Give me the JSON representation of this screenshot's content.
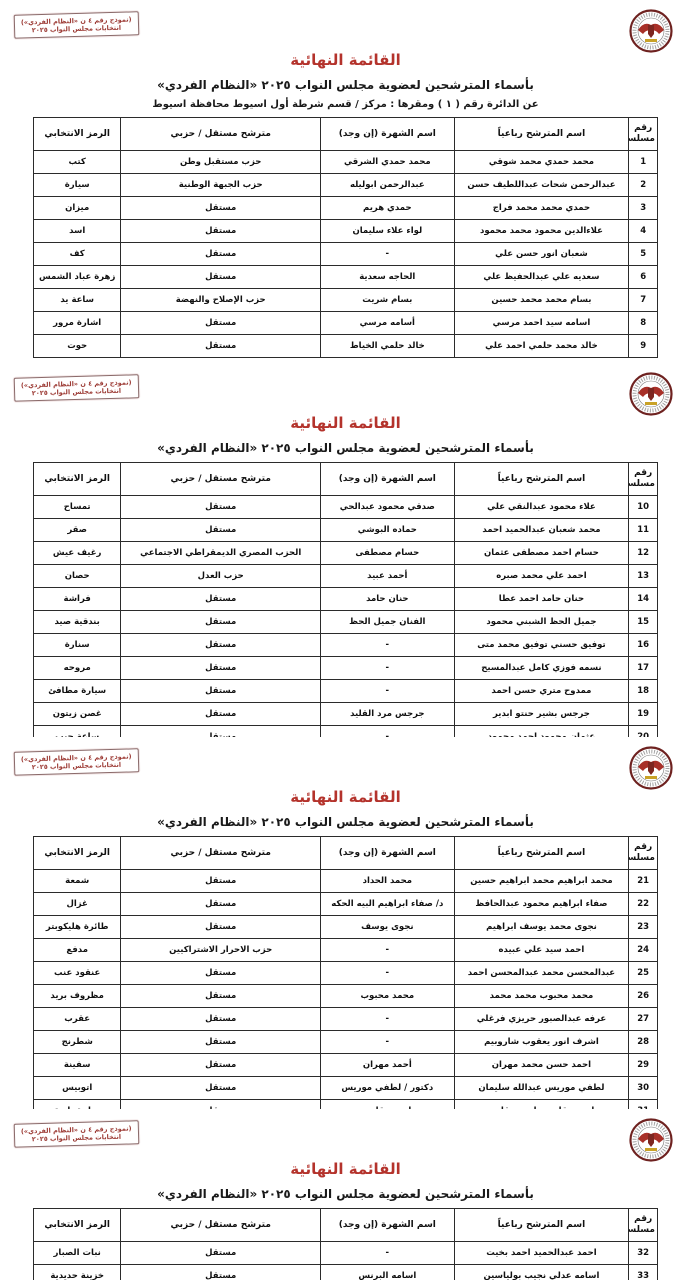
{
  "colors": {
    "title_red": "#b4332c",
    "stamp_red": "#9c3a34",
    "table_border": "#2b2b2b",
    "seal_eagle_red": "#a83028",
    "seal_gold": "#c9a227"
  },
  "icons": {
    "seal": "nea-eagle-seal"
  },
  "stamp": {
    "line1": "(نموذج رقم ٤ ن «النظام الفردي»)",
    "line2": "انتخابات مجلس النواب ٢٠٢٥"
  },
  "header": {
    "title": "القائمة النهائية",
    "subtitle": "بأسماء المترشحين لعضوية مجلس النواب ٢٠٢٥ «النظام الفردي»",
    "district_line": "عن الدائرة رقم ( ١ )   ومقرها : مركز / قسم شرطة أول اسيوط   محافظة اسيوط"
  },
  "table_headers": {
    "serial": "رقم مسلسل",
    "name": "اسم المترشح رباعياً",
    "nickname": "اسم الشهرة (إن وجد)",
    "party": "مترشح مستقل / حزبي",
    "symbol": "الرمز الانتخابي"
  },
  "pages": [
    {
      "rows": [
        {
          "serial": "1",
          "name": "محمد حمدي محمد شوقي",
          "nickname": "محمد حمدي الشرقي",
          "party": "حزب مستقبل وطن",
          "symbol": "كتب"
        },
        {
          "serial": "2",
          "name": "عبدالرحمن شحات عبداللطيف حسن",
          "nickname": "عبدالرحمن ابوليله",
          "party": "حزب الجبهة الوطنية",
          "symbol": "سيارة"
        },
        {
          "serial": "3",
          "name": "حمدي محمد محمد فراج",
          "nickname": "حمدي هريم",
          "party": "مستقل",
          "symbol": "ميزان"
        },
        {
          "serial": "4",
          "name": "علاءالدين محمود محمد محمود",
          "nickname": "لواء علاء سليمان",
          "party": "مستقل",
          "symbol": "اسد"
        },
        {
          "serial": "5",
          "name": "شعبان انور حسن علي",
          "nickname": "-",
          "party": "مستقل",
          "symbol": "كف"
        },
        {
          "serial": "6",
          "name": "سعديه علي عبدالحفيظ علي",
          "nickname": "الحاجه سعدية",
          "party": "مستقل",
          "symbol": "زهرة عباد الشمس"
        },
        {
          "serial": "7",
          "name": "بسام محمد محمد حسين",
          "nickname": "بسام شريت",
          "party": "حزب الإصلاح والنهضة",
          "symbol": "ساعة يد"
        },
        {
          "serial": "8",
          "name": "اسامه سيد احمد مرسي",
          "nickname": "أسامه مرسي",
          "party": "مستقل",
          "symbol": "اشارة مرور"
        },
        {
          "serial": "9",
          "name": "خالد محمد حلمي احمد علي",
          "nickname": "خالد حلمي الخياط",
          "party": "مستقل",
          "symbol": "حوت"
        }
      ]
    },
    {
      "rows": [
        {
          "serial": "10",
          "name": "علاء محمود عبدالنقي علي",
          "nickname": "صدقي محمود عبدالحي",
          "party": "مستقل",
          "symbol": "تمساح"
        },
        {
          "serial": "11",
          "name": "محمد شعبان عبدالحميد احمد",
          "nickname": "حماده البوشي",
          "party": "مستقل",
          "symbol": "صقر"
        },
        {
          "serial": "12",
          "name": "حسام احمد مصطفى عثمان",
          "nickname": "حسام مصطفى",
          "party": "الحزب المصري الديمقراطي الاجتماعي",
          "symbol": "رغيف عيش"
        },
        {
          "serial": "13",
          "name": "احمد علي محمد صبره",
          "nickname": "أحمد عبيد",
          "party": "حزب العدل",
          "symbol": "حصان"
        },
        {
          "serial": "14",
          "name": "حنان حامد احمد عطا",
          "nickname": "حنان حامد",
          "party": "مستقل",
          "symbol": "فراشة"
        },
        {
          "serial": "15",
          "name": "جميل الحظ الشبني محمود",
          "nickname": "الفنان جميل الحظ",
          "party": "مستقل",
          "symbol": "بندقية صيد"
        },
        {
          "serial": "16",
          "name": "توفيق حسني توفيق محمد متى",
          "nickname": "-",
          "party": "مستقل",
          "symbol": "سنارة"
        },
        {
          "serial": "17",
          "name": "نسمه فوزي كامل عبدالمسيح",
          "nickname": "-",
          "party": "مستقل",
          "symbol": "مروحه"
        },
        {
          "serial": "18",
          "name": "ممدوح متري حسن احمد",
          "nickname": "-",
          "party": "مستقل",
          "symbol": "سيارة مطافئ"
        },
        {
          "serial": "19",
          "name": "جرجس بشير حنتو ابدير",
          "nickname": "جرجس مرد القليد",
          "party": "مستقل",
          "symbol": "غصن زيتون"
        },
        {
          "serial": "20",
          "name": "عثمان محمود احمد محمود",
          "nickname": "-",
          "party": "مستقل",
          "symbol": "ساعة جيب"
        }
      ]
    },
    {
      "rows": [
        {
          "serial": "21",
          "name": "محمد ابراهيم محمد ابراهيم حسين",
          "nickname": "محمد الحداد",
          "party": "مستقل",
          "symbol": "شمعة"
        },
        {
          "serial": "22",
          "name": "صفاء ابراهيم محمود عبدالحافظ",
          "nickname": "د/ صفاء ابراهيم البيه الحكه",
          "party": "مستقل",
          "symbol": "غزال"
        },
        {
          "serial": "23",
          "name": "نجوى محمد يوسف ابراهيم",
          "nickname": "نجوى يوسف",
          "party": "مستقل",
          "symbol": "طائرة هليكوبتر"
        },
        {
          "serial": "24",
          "name": "احمد سيد علي عبيده",
          "nickname": "-",
          "party": "حزب الاحرار الاشتراكيين",
          "symbol": "مدفع"
        },
        {
          "serial": "25",
          "name": "عبدالمحسن محمد عبدالمحسن احمد",
          "nickname": "-",
          "party": "مستقل",
          "symbol": "عنقود عنب"
        },
        {
          "serial": "26",
          "name": "محمد محبوب محمد محمد",
          "nickname": "محمد محبوب",
          "party": "مستقل",
          "symbol": "مظروف بريد"
        },
        {
          "serial": "27",
          "name": "عرفه عبدالصبور حريزي فرغلي",
          "nickname": "-",
          "party": "مستقل",
          "symbol": "عقرب"
        },
        {
          "serial": "28",
          "name": "اشرف انور يعقوب شاروبيم",
          "nickname": "-",
          "party": "مستقل",
          "symbol": "شطرنج"
        },
        {
          "serial": "29",
          "name": "احمد حسن محمد مهران",
          "nickname": "أحمد مهران",
          "party": "مستقل",
          "symbol": "سفينة"
        },
        {
          "serial": "30",
          "name": "لطفي موريس عبدالله سليمان",
          "nickname": "دكتور / لطفي موريس",
          "party": "مستقل",
          "symbol": "اتوبيس"
        },
        {
          "serial": "31",
          "name": "تادرس قلتس تادرس قلتس",
          "nickname": "تادرس قلتس",
          "party": "مستقل",
          "symbol": "دراجة نارية"
        }
      ]
    },
    {
      "rows": [
        {
          "serial": "32",
          "name": "احمد عبدالحميد احمد بخيت",
          "nickname": "-",
          "party": "مستقل",
          "symbol": "نبات الصبار"
        },
        {
          "serial": "33",
          "name": "اسامه عدلي نجيب بولياسين",
          "nickname": "اسامه البرنس",
          "party": "مستقل",
          "symbol": "خزينة حديدية"
        }
      ]
    }
  ]
}
